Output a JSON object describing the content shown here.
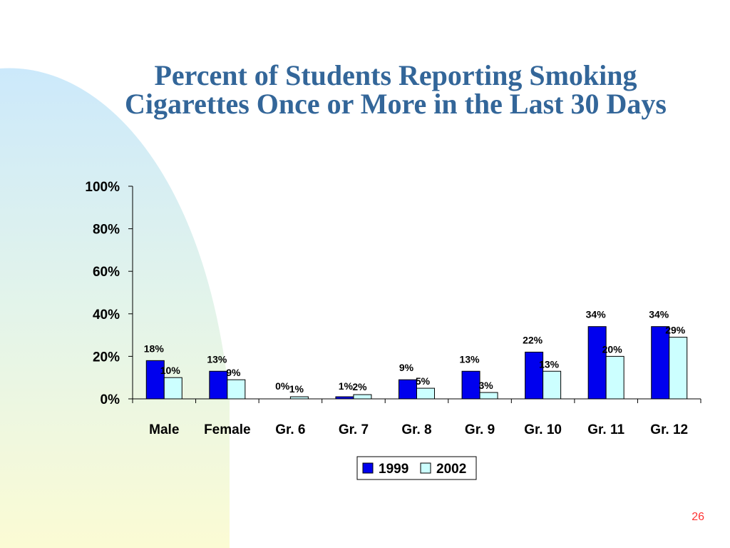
{
  "slide": {
    "title_line1": "Percent of Students Reporting Smoking",
    "title_line2": "Cigarettes Once or More in the Last 30 Days",
    "number": "26"
  },
  "colors": {
    "title": "#336699",
    "series_1999": "#0000ee",
    "series_2002": "#ccffff",
    "slide_number": "#ff3333"
  },
  "chart_data": {
    "type": "bar",
    "title": "",
    "xlabel": "",
    "ylabel": "",
    "categories": [
      "Male",
      "Female",
      "Gr. 6",
      "Gr. 7",
      "Gr. 8",
      "Gr. 9",
      "Gr. 10",
      "Gr. 11",
      "Gr. 12"
    ],
    "series": [
      {
        "name": "1999",
        "values": [
          18,
          13,
          0,
          1,
          9,
          13,
          22,
          34,
          34
        ],
        "labels": [
          "18%",
          "13%",
          "0%",
          "1%",
          "9%",
          "13%",
          "22%",
          "34%",
          "34%"
        ]
      },
      {
        "name": "2002",
        "values": [
          10,
          9,
          1,
          2,
          5,
          3,
          13,
          20,
          29
        ],
        "labels": [
          "10%",
          "9%",
          "1%",
          "2%",
          "5%",
          "3%",
          "13%",
          "20%",
          "29%"
        ]
      }
    ],
    "ylim": [
      0,
      100
    ],
    "yticks": [
      0,
      20,
      40,
      60,
      80,
      100
    ],
    "ytick_labels": [
      "0%",
      "20%",
      "40%",
      "60%",
      "80%",
      "100%"
    ],
    "grid": false,
    "legend_position": "bottom"
  }
}
